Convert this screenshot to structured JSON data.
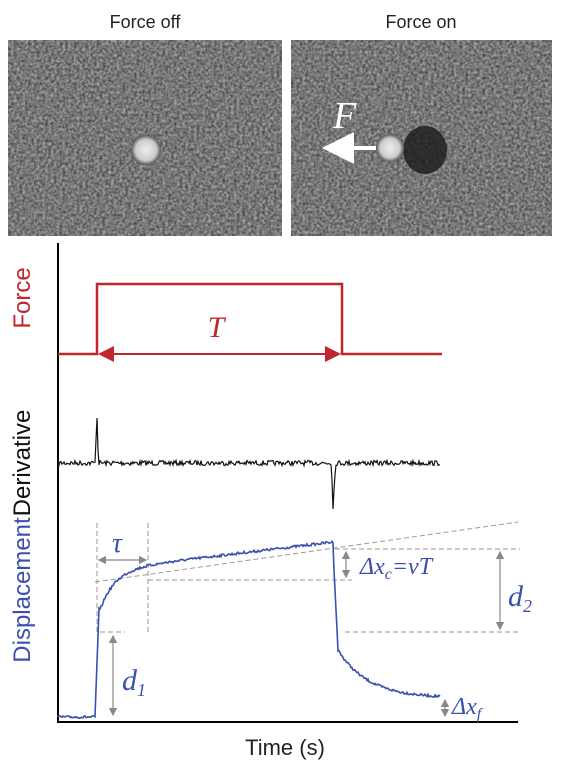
{
  "images": [
    {
      "title": "Force off"
    },
    {
      "title": "Force on",
      "annotation": "F"
    }
  ],
  "plot": {
    "row_labels": {
      "force": "Force",
      "derivative": "Derivative",
      "displacement": "Displacement"
    },
    "x_label": "Time (s)",
    "annotations": {
      "T": "T",
      "tau": "τ",
      "dxc": {
        "main": "Δx",
        "sub": "c",
        "rest": "=vT"
      },
      "d2": {
        "main": "d",
        "sub": "2"
      },
      "d1": {
        "main": "d",
        "sub": "1"
      },
      "dxf": {
        "main": "Δx",
        "sub": "f"
      }
    }
  }
}
